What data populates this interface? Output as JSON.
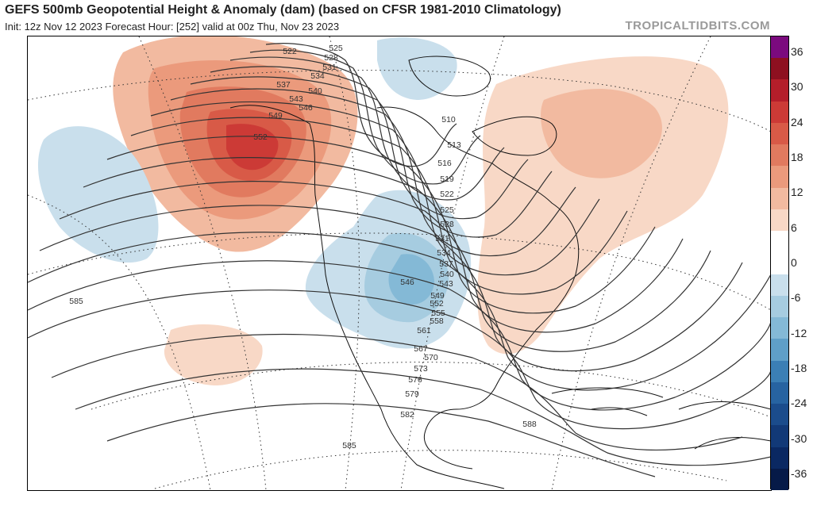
{
  "header": {
    "title": "GEFS 500mb Geopotential Height & Anomaly (dam) (based on CFSR 1981-2010 Climatology)",
    "subtitle": "Init: 12z Nov 12 2023   Forecast Hour: [252]   valid at 00z Thu, Nov 23 2023",
    "brand": "TROPICALTIDBITS.COM"
  },
  "colorbar": {
    "labels": [
      "36",
      "30",
      "24",
      "18",
      "12",
      "6",
      "0",
      "-6",
      "-12",
      "-18",
      "-24",
      "-30",
      "-36"
    ],
    "colors": [
      "#7b0a7e",
      "#8e1020",
      "#b41e2a",
      "#cc3a36",
      "#d85a47",
      "#e17a5f",
      "#eb9a7c",
      "#f2baa0",
      "#f8d8c6",
      "#ffffff",
      "#ffffff",
      "#c9dfec",
      "#a6cce0",
      "#84b9d6",
      "#5f9fc8",
      "#3b7fb5",
      "#2763a1",
      "#1b4c8c",
      "#123977",
      "#0a2862",
      "#061a48"
    ],
    "accent_positive": "#d85a47",
    "accent_negative": "#5f9fc8"
  },
  "map": {
    "contour_labels": [
      {
        "text": "522"
      },
      {
        "text": "525"
      },
      {
        "text": "528"
      },
      {
        "text": "531"
      },
      {
        "text": "534"
      },
      {
        "text": "537"
      },
      {
        "text": "540"
      },
      {
        "text": "543"
      },
      {
        "text": "546"
      },
      {
        "text": "549"
      },
      {
        "text": "552"
      },
      {
        "text": "510"
      },
      {
        "text": "513"
      },
      {
        "text": "516"
      },
      {
        "text": "519"
      },
      {
        "text": "522"
      },
      {
        "text": "525"
      },
      {
        "text": "528"
      },
      {
        "text": "531"
      },
      {
        "text": "534"
      },
      {
        "text": "537"
      },
      {
        "text": "540"
      },
      {
        "text": "543"
      },
      {
        "text": "546"
      },
      {
        "text": "549"
      },
      {
        "text": "552"
      },
      {
        "text": "555"
      },
      {
        "text": "558"
      },
      {
        "text": "561"
      },
      {
        "text": "567"
      },
      {
        "text": "570"
      },
      {
        "text": "573"
      },
      {
        "text": "576"
      },
      {
        "text": "579"
      },
      {
        "text": "582"
      },
      {
        "text": "585"
      },
      {
        "text": "585"
      },
      {
        "text": "588"
      }
    ]
  }
}
